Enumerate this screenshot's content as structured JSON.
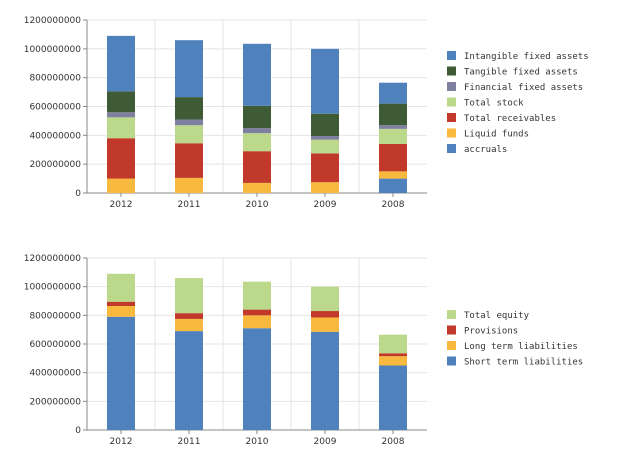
{
  "chart_data": [
    {
      "type": "bar",
      "stacked": true,
      "categories": [
        "2012",
        "2011",
        "2010",
        "2009",
        "2008"
      ],
      "ylim": [
        0,
        1200000000
      ],
      "yticks": [
        "0",
        "200000000",
        "400000000",
        "600000000",
        "800000000",
        "1000000000",
        "1200000000"
      ],
      "grid": true,
      "legend_position": "right",
      "series": [
        {
          "name": "accruals",
          "color": "#4f81bd",
          "values": [
            0,
            0,
            0,
            0,
            100000000
          ]
        },
        {
          "name": "Liquid funds",
          "color": "#f8b93e",
          "values": [
            100000000,
            105000000,
            70000000,
            75000000,
            50000000
          ]
        },
        {
          "name": "Total receivables",
          "color": "#c0392b",
          "values": [
            280000000,
            240000000,
            220000000,
            200000000,
            190000000
          ]
        },
        {
          "name": "Total stock",
          "color": "#bcd88a",
          "values": [
            145000000,
            125000000,
            125000000,
            95000000,
            105000000
          ]
        },
        {
          "name": "Financial fixed assets",
          "color": "#7f7f9f",
          "values": [
            35000000,
            40000000,
            35000000,
            25000000,
            25000000
          ]
        },
        {
          "name": "Tangible fixed assets",
          "color": "#3e5b36",
          "values": [
            145000000,
            155000000,
            155000000,
            155000000,
            150000000
          ]
        },
        {
          "name": "Intangible fixed assets",
          "color": "#4f81bd",
          "values": [
            385000000,
            395000000,
            430000000,
            450000000,
            145000000
          ]
        }
      ],
      "legend_order": [
        "Intangible fixed assets",
        "Tangible fixed assets",
        "Financial fixed assets",
        "Total stock",
        "Total receivables",
        "Liquid funds",
        "accruals"
      ]
    },
    {
      "type": "bar",
      "stacked": true,
      "categories": [
        "2012",
        "2011",
        "2010",
        "2009",
        "2008"
      ],
      "ylim": [
        0,
        1200000000
      ],
      "yticks": [
        "0",
        "200000000",
        "400000000",
        "600000000",
        "800000000",
        "1000000000",
        "1200000000"
      ],
      "grid": true,
      "legend_position": "right",
      "series": [
        {
          "name": "Short term liabilities",
          "color": "#4f81bd",
          "values": [
            790000000,
            690000000,
            710000000,
            685000000,
            450000000
          ]
        },
        {
          "name": "Long term liabilities",
          "color": "#f8b93e",
          "values": [
            75000000,
            85000000,
            90000000,
            100000000,
            65000000
          ]
        },
        {
          "name": "Provisions",
          "color": "#c0392b",
          "values": [
            30000000,
            40000000,
            40000000,
            45000000,
            20000000
          ]
        },
        {
          "name": "Total equity",
          "color": "#bcd88a",
          "values": [
            195000000,
            245000000,
            195000000,
            170000000,
            130000000
          ]
        }
      ],
      "legend_order": [
        "Total equity",
        "Provisions",
        "Long term liabilities",
        "Short term liabilities"
      ]
    }
  ]
}
